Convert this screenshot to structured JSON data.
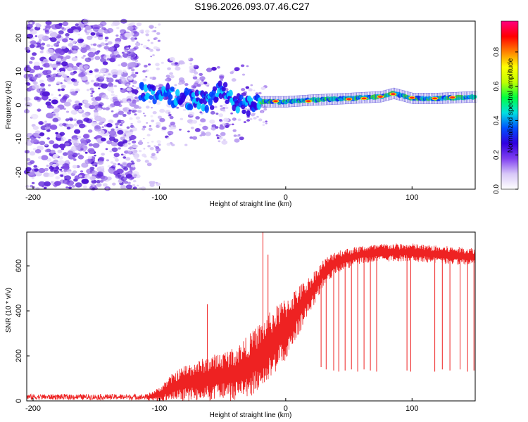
{
  "figure": {
    "title": "S196.2026.093.07.46.C27"
  },
  "chart_data": [
    {
      "type": "heatmap",
      "name": "spectrogram",
      "xlabel": "Height of straight line (km)",
      "ylabel": "Frequency (Hz)",
      "xlim": [
        -205,
        150
      ],
      "ylim": [
        -25,
        25
      ],
      "xticks": [
        -200,
        -100,
        0,
        100
      ],
      "xtick_labels": [
        "-200",
        "-100",
        "0",
        "100"
      ],
      "yticks": [
        -20,
        -10,
        0,
        10,
        20
      ],
      "ytick_labels": [
        "-20",
        "-10",
        "0",
        "10",
        "20"
      ],
      "colorbar": {
        "label": "Normalized spectral amplitude",
        "range": [
          0,
          0.98
        ],
        "ticks": [
          0.0,
          0.2,
          0.4,
          0.6,
          0.8
        ],
        "tick_labels": [
          "0.0",
          "0.2",
          "0.4",
          "0.6",
          "0.8"
        ],
        "colors": [
          "#ffffff",
          "#d8c8f8",
          "#8040f0",
          "#3000e0",
          "#0050ff",
          "#00e0e0",
          "#00ff40",
          "#c0ff00",
          "#ffff00",
          "#ff8000",
          "#ff0000",
          "#ff0080"
        ]
      },
      "ridge": {
        "x": [
          -110,
          -80,
          -60,
          -50,
          -40,
          -30,
          -20,
          0,
          20,
          50,
          75,
          85,
          100,
          120,
          150
        ],
        "freq": [
          4,
          2,
          1,
          5,
          0.5,
          0,
          1,
          1,
          1.5,
          2,
          2.5,
          3.5,
          2,
          2,
          2.5
        ]
      }
    },
    {
      "type": "line",
      "name": "snr",
      "xlabel": "Height of straight line (km)",
      "ylabel": "SNR (10 * v/v)",
      "xlim": [
        -205,
        150
      ],
      "ylim": [
        0,
        750
      ],
      "xticks": [
        -200,
        -100,
        0,
        100
      ],
      "xtick_labels": [
        "-200",
        "-100",
        "0",
        "100"
      ],
      "yticks": [
        0,
        200,
        400,
        600
      ],
      "ytick_labels": [
        "0",
        "200",
        "400",
        "600"
      ],
      "color": "#ee2222",
      "envelope": {
        "x": [
          -205,
          -110,
          -100,
          -90,
          -80,
          -70,
          -60,
          -50,
          -40,
          -30,
          -20,
          -10,
          0,
          10,
          20,
          30,
          40,
          60,
          80,
          100,
          120,
          150
        ],
        "base": [
          15,
          15,
          30,
          60,
          80,
          90,
          100,
          110,
          120,
          150,
          200,
          260,
          320,
          400,
          480,
          570,
          620,
          650,
          660,
          660,
          650,
          640
        ],
        "spread": [
          15,
          15,
          30,
          60,
          80,
          90,
          100,
          110,
          120,
          140,
          150,
          150,
          140,
          110,
          80,
          60,
          50,
          40,
          40,
          40,
          40,
          40
        ]
      },
      "spikes": [
        {
          "x": -62,
          "y": 430
        },
        {
          "x": -18,
          "y": 750
        },
        {
          "x": -14,
          "y": 650
        },
        {
          "x": 28,
          "y": 150
        },
        {
          "x": 32,
          "y": 140
        },
        {
          "x": 38,
          "y": 135
        },
        {
          "x": 42,
          "y": 130
        },
        {
          "x": 47,
          "y": 135
        },
        {
          "x": 52,
          "y": 140
        },
        {
          "x": 57,
          "y": 130
        },
        {
          "x": 62,
          "y": 140
        },
        {
          "x": 67,
          "y": 135
        },
        {
          "x": 72,
          "y": 130
        },
        {
          "x": 96,
          "y": 135
        },
        {
          "x": 99,
          "y": 130
        },
        {
          "x": 118,
          "y": 130
        },
        {
          "x": 124,
          "y": 140
        },
        {
          "x": 130,
          "y": 135
        },
        {
          "x": 138,
          "y": 140
        },
        {
          "x": 144,
          "y": 130
        },
        {
          "x": 149,
          "y": 135
        }
      ]
    }
  ]
}
